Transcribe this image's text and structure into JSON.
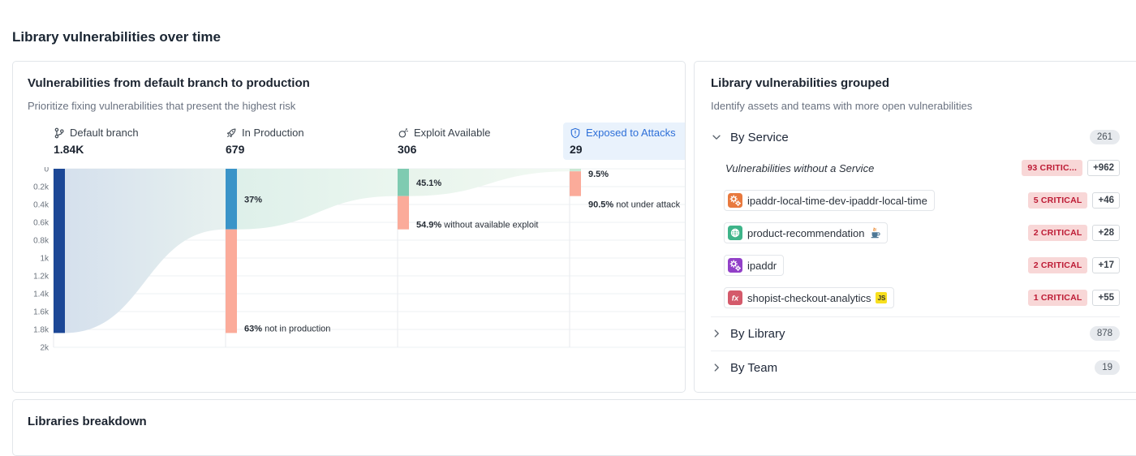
{
  "colors": {
    "accent_blue": "#2d6fd8",
    "selected_stage_bg": "#e9f2fc",
    "bar_navy": "#1c4796",
    "bar_blue": "#3a94c8",
    "bar_salmon": "#fbab9a",
    "bar_green": "#7fcbb1",
    "bar_pale_green": "#c9e8d3",
    "critical_badge_bg": "#f8d7d7",
    "critical_badge_text": "#bd1a34"
  },
  "page": {
    "title": "Library vulnerabilities over time"
  },
  "funnel_card": {
    "title": "Vulnerabilities from default branch to production",
    "subtitle": "Prioritize fixing vulnerabilities that present the highest risk",
    "stages": [
      {
        "label": "Default branch",
        "icon": "git-branch-icon",
        "value_label": "1.84K"
      },
      {
        "label": "In Production",
        "icon": "rocket-icon",
        "value_label": "679"
      },
      {
        "label": "Exploit Available",
        "icon": "bomb-icon",
        "value_label": "306"
      },
      {
        "label": "Exposed to Attacks",
        "icon": "shield-alert-icon",
        "value_label": "29",
        "selected": true
      }
    ],
    "chart_data": {
      "type": "funnel_sankey",
      "title": "Vulnerabilities from default branch to production",
      "y_ticks": [
        "0",
        "0.2k",
        "0.4k",
        "0.6k",
        "0.8k",
        "1k",
        "1.2k",
        "1.4k",
        "1.6k",
        "1.8k",
        "2k"
      ],
      "y_max": 2000,
      "grid_step": 200,
      "stage_names": [
        "Default branch",
        "In Production",
        "Exploit Available",
        "Exposed to Attacks"
      ],
      "stage_values": [
        1840,
        679,
        306,
        29
      ],
      "bars": [
        {
          "segments": [
            {
              "from": 0,
              "to": 1840,
              "color": "#1c4796"
            }
          ],
          "annotations": []
        },
        {
          "segments": [
            {
              "from": 0,
              "to": 679,
              "color": "#3a94c8"
            },
            {
              "from": 679,
              "to": 1840,
              "color": "#fbab9a"
            }
          ],
          "annotations": [
            {
              "pct": "37%",
              "text": "",
              "seg": 0,
              "anchor": "mid"
            },
            {
              "pct": "63%",
              "text": " not in production",
              "seg": 1,
              "anchor": "bottom"
            }
          ]
        },
        {
          "segments": [
            {
              "from": 0,
              "to": 306,
              "color": "#7fcbb1"
            },
            {
              "from": 306,
              "to": 679,
              "color": "#fbab9a"
            }
          ],
          "annotations": [
            {
              "pct": "45.1%",
              "text": "",
              "seg": 0,
              "anchor": "mid"
            },
            {
              "pct": "54.9%",
              "text": " without available exploit",
              "seg": 1,
              "anchor": "bottom"
            }
          ]
        },
        {
          "segments": [
            {
              "from": 0,
              "to": 29,
              "color": "#c9e8d3"
            },
            {
              "from": 29,
              "to": 306,
              "color": "#fbab9a"
            }
          ],
          "annotations": [
            {
              "pct": "9.5%",
              "text": "",
              "seg": 0,
              "anchor": "mid"
            },
            {
              "pct": "90.5%",
              "text": " not under attack",
              "seg": 1,
              "anchor": "below"
            }
          ]
        }
      ],
      "flow_gradients": [
        [
          "#d5e0ed",
          "#e7f1ef"
        ],
        [
          "#def0ea",
          "#ebf6ef"
        ],
        [
          "#e8f4ec",
          "#f2f9f3"
        ]
      ]
    }
  },
  "grouped_card": {
    "title": "Library vulnerabilities grouped",
    "subtitle": "Identify assets and teams with more open vulnerabilities",
    "groups": [
      {
        "label": "By Service",
        "count": "261",
        "expanded": true
      },
      {
        "label": "By Library",
        "count": "878",
        "expanded": false
      },
      {
        "label": "By Team",
        "count": "19",
        "expanded": false
      }
    ],
    "service_rows": [
      {
        "name": "Vulnerabilities without a Service",
        "critical": "93 CRITIC...",
        "more": "+962"
      },
      {
        "name": "ipaddr-local-time-dev-ipaddr-local-time",
        "icon": "gears-icon",
        "icon_color": "#e8793e",
        "critical": "5 CRITICAL",
        "more": "+46"
      },
      {
        "name": "product-recommendation",
        "icon": "globe-icon",
        "icon_color": "#3eb489",
        "lang": "java",
        "critical": "2 CRITICAL",
        "more": "+28"
      },
      {
        "name": "ipaddr",
        "icon": "gears-icon",
        "icon_color": "#9240c8",
        "critical": "2 CRITICAL",
        "more": "+17"
      },
      {
        "name": "shopist-checkout-analytics",
        "icon": "fx-icon",
        "icon_color": "#d45a6b",
        "icon_text": "fx",
        "lang": "js",
        "lang_text": "JS",
        "critical": "1 CRITICAL",
        "more": "+55"
      }
    ]
  },
  "breakdown_card": {
    "title": "Libraries breakdown"
  }
}
